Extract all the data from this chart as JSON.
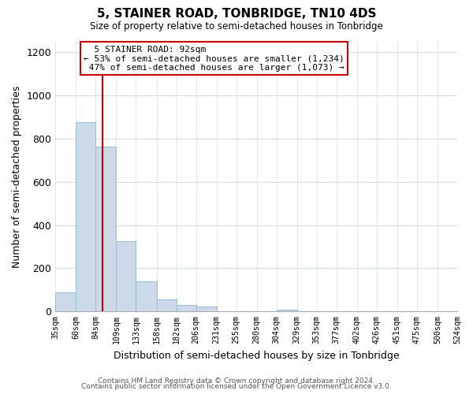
{
  "title": "5, STAINER ROAD, TONBRIDGE, TN10 4DS",
  "subtitle": "Size of property relative to semi-detached houses in Tonbridge",
  "xlabel": "Distribution of semi-detached houses by size in Tonbridge",
  "ylabel": "Number of semi-detached properties",
  "bar_values": [
    90,
    875,
    765,
    325,
    140,
    55,
    30,
    22,
    0,
    0,
    0,
    10,
    0,
    0,
    0,
    0,
    0,
    0,
    0,
    0
  ],
  "bar_color": "#ccd9e8",
  "bar_edge_color": "#99bad0",
  "property_line_x": 92,
  "annotation_title": "5 STAINER ROAD: 92sqm",
  "annotation_line1": "← 53% of semi-detached houses are smaller (1,234)",
  "annotation_line2": "47% of semi-detached houses are larger (1,073) →",
  "annotation_box_color": "#ffffff",
  "annotation_box_edge": "#cc0000",
  "vline_color": "#cc0000",
  "ylim": [
    0,
    1250
  ],
  "yticks": [
    0,
    200,
    400,
    600,
    800,
    1000,
    1200
  ],
  "bin_edges": [
    35,
    60,
    84,
    109,
    133,
    158,
    182,
    206,
    231,
    255,
    280,
    304,
    329,
    353,
    377,
    402,
    426,
    451,
    475,
    500,
    524
  ],
  "footer1": "Contains HM Land Registry data © Crown copyright and database right 2024.",
  "footer2": "Contains public sector information licensed under the Open Government Licence v3.0.",
  "background_color": "#ffffff",
  "grid_color": "#d0dcea"
}
